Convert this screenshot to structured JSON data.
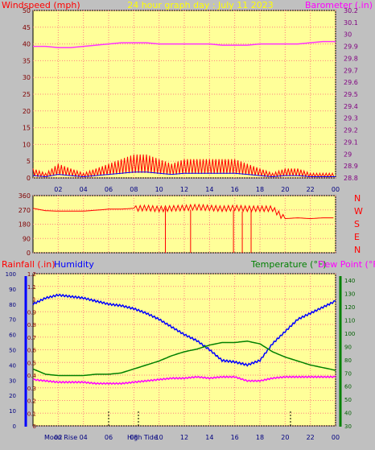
{
  "colors": {
    "background": "#c0c0c0",
    "plot_bg": "#ffff99",
    "grid": "#ff8080",
    "wind": "#ff0000",
    "gust_fill": "#0000ff",
    "barometer": "#ff33ff",
    "direction": "#ff0000",
    "rain": "#ff0000",
    "humidity": "#0000ff",
    "temperature": "#008000",
    "dewpoint": "#ff00ff",
    "axis_left": "#0000ff",
    "axis_right": "#008000",
    "title": "#ffff00"
  },
  "header": {
    "windspeed_label": "Windspeed (mph)",
    "title": "24 hour graph day : July 11 2023",
    "barometer_label": "Barometer (.in)"
  },
  "lower_header": {
    "rainfall_label": "Rainfall (.in)",
    "humidity_label": "Humidity",
    "temperature_label": "Temperature (°F)",
    "dewpoint_label": "Dew Point (°F)"
  },
  "compass_labels": [
    "N",
    "W",
    "S",
    "E",
    "N"
  ],
  "bottom_markers": {
    "moon_rise": "Moon Rise",
    "high_tide": "High Tide"
  },
  "chart_data": [
    {
      "type": "line",
      "name": "wind-barometer",
      "x_ticks": [
        "02",
        "04",
        "06",
        "08",
        "10",
        "12",
        "14",
        "16",
        "18",
        "20",
        "22",
        "00"
      ],
      "ylim_left": [
        0,
        50
      ],
      "yticks_left": [
        "0",
        "5",
        "10",
        "15",
        "20",
        "25",
        "30",
        "35",
        "40",
        "45",
        "50"
      ],
      "ylim_right": [
        28.8,
        30.2
      ],
      "yticks_right": [
        "28.8",
        "28.9",
        "29",
        "29.1",
        "29.2",
        "29.3",
        "29.4",
        "29.5",
        "29.6",
        "29.7",
        "29.8",
        "29.9",
        "30",
        "30.1",
        "30.2"
      ],
      "series": [
        {
          "name": "Windspeed (mph)",
          "points": [
            [
              0,
              2
            ],
            [
              1,
              1
            ],
            [
              2,
              3
            ],
            [
              3,
              2
            ],
            [
              4,
              1
            ],
            [
              5,
              2
            ],
            [
              6,
              3
            ],
            [
              7,
              4
            ],
            [
              8,
              5
            ],
            [
              9,
              5
            ],
            [
              10,
              4
            ],
            [
              11,
              3
            ],
            [
              12,
              4
            ],
            [
              13,
              4
            ],
            [
              14,
              4
            ],
            [
              15,
              4
            ],
            [
              16,
              4
            ],
            [
              17,
              3
            ],
            [
              18,
              2
            ],
            [
              19,
              1
            ],
            [
              20,
              2
            ],
            [
              21,
              2
            ],
            [
              22,
              1
            ],
            [
              23,
              1
            ],
            [
              24,
              1
            ]
          ]
        },
        {
          "name": "Barometer (.in)",
          "points": [
            [
              0,
              29.9
            ],
            [
              1,
              29.9
            ],
            [
              2,
              29.89
            ],
            [
              3,
              29.89
            ],
            [
              4,
              29.9
            ],
            [
              5,
              29.91
            ],
            [
              6,
              29.92
            ],
            [
              7,
              29.93
            ],
            [
              8,
              29.93
            ],
            [
              9,
              29.93
            ],
            [
              10,
              29.92
            ],
            [
              11,
              29.92
            ],
            [
              12,
              29.92
            ],
            [
              13,
              29.92
            ],
            [
              14,
              29.92
            ],
            [
              15,
              29.91
            ],
            [
              16,
              29.91
            ],
            [
              17,
              29.91
            ],
            [
              18,
              29.92
            ],
            [
              19,
              29.92
            ],
            [
              20,
              29.92
            ],
            [
              21,
              29.92
            ],
            [
              22,
              29.93
            ],
            [
              23,
              29.94
            ],
            [
              24,
              29.94
            ]
          ]
        }
      ]
    },
    {
      "type": "line",
      "name": "wind-direction",
      "x_ticks": [
        "02",
        "04",
        "06",
        "08",
        "10",
        "12",
        "14",
        "16",
        "18",
        "20",
        "22",
        "00"
      ],
      "ylim": [
        0,
        360
      ],
      "yticks": [
        "0",
        "90",
        "180",
        "270",
        "360"
      ],
      "series": [
        {
          "name": "Direction",
          "points": [
            [
              0,
              280
            ],
            [
              1,
              265
            ],
            [
              2,
              262
            ],
            [
              3,
              262
            ],
            [
              4,
              262
            ],
            [
              5,
              268
            ],
            [
              6,
              275
            ],
            [
              7,
              275
            ],
            [
              8,
              280
            ],
            [
              9,
              285
            ],
            [
              10,
              278
            ],
            [
              11,
              282
            ],
            [
              12,
              285
            ],
            [
              13,
              290
            ],
            [
              14,
              285
            ],
            [
              15,
              280
            ],
            [
              16,
              285
            ],
            [
              17,
              280
            ],
            [
              18,
              280
            ],
            [
              19,
              280
            ],
            [
              20,
              215
            ],
            [
              21,
              220
            ],
            [
              22,
              215
            ],
            [
              23,
              220
            ],
            [
              24,
              220
            ]
          ]
        }
      ]
    },
    {
      "type": "line",
      "name": "rain-humidity-temperature",
      "x_ticks": [
        "02",
        "04",
        "06",
        "08",
        "10",
        "12",
        "14",
        "16",
        "18",
        "20",
        "22",
        "00"
      ],
      "ylim_humidity": [
        0,
        100
      ],
      "yticks_humidity": [
        "0",
        "10",
        "20",
        "30",
        "40",
        "50",
        "60",
        "70",
        "80",
        "90",
        "100"
      ],
      "ylim_rain": [
        0,
        1.2
      ],
      "yticks_rain": [
        "0",
        "0.1",
        "0.2",
        "0.3",
        "0.4",
        "0.5",
        "0.6",
        "0.7",
        "0.8",
        "0.9",
        "1",
        "1.1",
        "1.2"
      ],
      "ylim_temperature": [
        30,
        145
      ],
      "yticks_temperature": [
        "30",
        "40",
        "50",
        "60",
        "70",
        "80",
        "90",
        "100",
        "110",
        "120",
        "130",
        "140"
      ],
      "series": [
        {
          "name": "Humidity",
          "points": [
            [
              0,
              80
            ],
            [
              1,
              84
            ],
            [
              2,
              86
            ],
            [
              3,
              85
            ],
            [
              4,
              84
            ],
            [
              5,
              82
            ],
            [
              6,
              80
            ],
            [
              7,
              79
            ],
            [
              8,
              77
            ],
            [
              9,
              74
            ],
            [
              10,
              70
            ],
            [
              11,
              65
            ],
            [
              12,
              60
            ],
            [
              13,
              56
            ],
            [
              14,
              50
            ],
            [
              15,
              43
            ],
            [
              16,
              42
            ],
            [
              17,
              40
            ],
            [
              18,
              43
            ],
            [
              19,
              54
            ],
            [
              20,
              62
            ],
            [
              21,
              70
            ],
            [
              22,
              74
            ],
            [
              23,
              78
            ],
            [
              24,
              82
            ]
          ]
        },
        {
          "name": "Temperature (°F)",
          "points": [
            [
              0,
              73
            ],
            [
              1,
              69
            ],
            [
              2,
              68
            ],
            [
              3,
              68
            ],
            [
              4,
              68
            ],
            [
              5,
              69
            ],
            [
              6,
              69
            ],
            [
              7,
              70
            ],
            [
              8,
              73
            ],
            [
              9,
              76
            ],
            [
              10,
              79
            ],
            [
              11,
              83
            ],
            [
              12,
              86
            ],
            [
              13,
              88
            ],
            [
              14,
              91
            ],
            [
              15,
              93
            ],
            [
              16,
              93
            ],
            [
              17,
              94
            ],
            [
              18,
              92
            ],
            [
              19,
              86
            ],
            [
              20,
              82
            ],
            [
              21,
              79
            ],
            [
              22,
              76
            ],
            [
              23,
              74
            ],
            [
              24,
              72
            ]
          ]
        },
        {
          "name": "Dew Point (°F)",
          "points": [
            [
              0,
              65
            ],
            [
              1,
              64
            ],
            [
              2,
              63
            ],
            [
              3,
              63
            ],
            [
              4,
              63
            ],
            [
              5,
              62
            ],
            [
              6,
              62
            ],
            [
              7,
              62
            ],
            [
              8,
              63
            ],
            [
              9,
              64
            ],
            [
              10,
              65
            ],
            [
              11,
              66
            ],
            [
              12,
              66
            ],
            [
              13,
              67
            ],
            [
              14,
              66
            ],
            [
              15,
              67
            ],
            [
              16,
              67
            ],
            [
              17,
              64
            ],
            [
              18,
              64
            ],
            [
              19,
              66
            ],
            [
              20,
              67
            ],
            [
              21,
              67
            ],
            [
              22,
              67
            ],
            [
              23,
              67
            ],
            [
              24,
              67
            ]
          ]
        }
      ]
    }
  ]
}
